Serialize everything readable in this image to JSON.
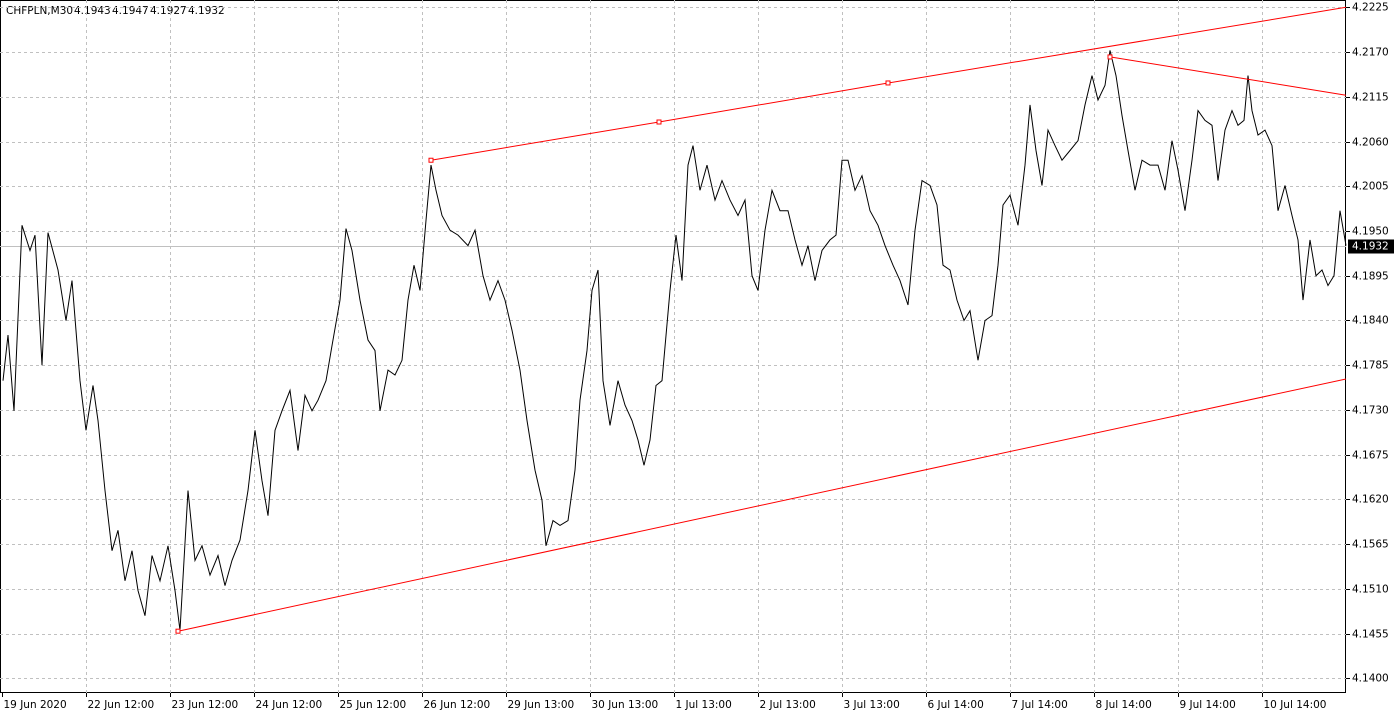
{
  "chart_data": {
    "type": "line",
    "title": "CHFPLN,M30",
    "ohlc": [
      4.1943,
      4.1947,
      4.1927,
      4.1932
    ],
    "last_price": 4.1932,
    "grid": true,
    "xlim": [
      0,
      1346
    ],
    "ylim": [
      4.1382,
      4.2234
    ],
    "xticks": [
      {
        "value": 2,
        "label": "19 Jun 2020"
      },
      {
        "value": 86,
        "label": "22 Jun 12:00"
      },
      {
        "value": 170,
        "label": "23 Jun 12:00"
      },
      {
        "value": 254,
        "label": "24 Jun 12:00"
      },
      {
        "value": 338,
        "label": "25 Jun 12:00"
      },
      {
        "value": 422,
        "label": "26 Jun 12:00"
      },
      {
        "value": 506,
        "label": "29 Jun 13:00"
      },
      {
        "value": 590,
        "label": "30 Jun 13:00"
      },
      {
        "value": 674,
        "label": "1 Jul 13:00"
      },
      {
        "value": 758,
        "label": "2 Jul 13:00"
      },
      {
        "value": 842,
        "label": "3 Jul 13:00"
      },
      {
        "value": 926,
        "label": "6 Jul 14:00"
      },
      {
        "value": 1010,
        "label": "7 Jul 14:00"
      },
      {
        "value": 1094,
        "label": "8 Jul 14:00"
      },
      {
        "value": 1178,
        "label": "9 Jul 14:00"
      },
      {
        "value": 1262,
        "label": "10 Jul 14:00"
      }
    ],
    "yticks": [
      {
        "value": 4.14,
        "label": "4.1400"
      },
      {
        "value": 4.1455,
        "label": "4.1455"
      },
      {
        "value": 4.151,
        "label": "4.1510"
      },
      {
        "value": 4.1565,
        "label": "4.1565"
      },
      {
        "value": 4.162,
        "label": "4.1620"
      },
      {
        "value": 4.1675,
        "label": "4.1675"
      },
      {
        "value": 4.173,
        "label": "4.1730"
      },
      {
        "value": 4.1785,
        "label": "4.1785"
      },
      {
        "value": 4.184,
        "label": "4.1840"
      },
      {
        "value": 4.1895,
        "label": "4.1895"
      },
      {
        "value": 4.195,
        "label": "4.1950"
      },
      {
        "value": 4.2005,
        "label": "4.2005"
      },
      {
        "value": 4.206,
        "label": "4.2060"
      },
      {
        "value": 4.2115,
        "label": "4.2115"
      },
      {
        "value": 4.217,
        "label": "4.2170"
      },
      {
        "value": 4.2225,
        "label": "4.2225"
      }
    ],
    "x": [
      3,
      8,
      14,
      22,
      30,
      35,
      42,
      48,
      58,
      66,
      72,
      80,
      86,
      93,
      98,
      105,
      112,
      118,
      125,
      132,
      138,
      145,
      152,
      160,
      168,
      175,
      180,
      188,
      195,
      202,
      210,
      218,
      225,
      232,
      240,
      248,
      255,
      262,
      268,
      275,
      282,
      290,
      298,
      305,
      312,
      318,
      326,
      332,
      340,
      346,
      352,
      360,
      368,
      375,
      380,
      388,
      395,
      402,
      408,
      414,
      420,
      426,
      431,
      436,
      442,
      450,
      458,
      468,
      475,
      483,
      490,
      498,
      505,
      512,
      520,
      527,
      535,
      542,
      546,
      553,
      560,
      568,
      575,
      580,
      587,
      592,
      598,
      603,
      610,
      618,
      625,
      632,
      638,
      644,
      650,
      656,
      662,
      670,
      676,
      682,
      688,
      693,
      700,
      707,
      715,
      722,
      730,
      738,
      745,
      752,
      758,
      765,
      772,
      780,
      788,
      795,
      802,
      808,
      815,
      822,
      830,
      836,
      842,
      848,
      855,
      862,
      870,
      878,
      885,
      893,
      900,
      908,
      915,
      922,
      930,
      937,
      943,
      950,
      957,
      964,
      970,
      978,
      985,
      992,
      998,
      1003,
      1010,
      1018,
      1025,
      1030,
      1036,
      1042,
      1048,
      1055,
      1062,
      1070,
      1078,
      1085,
      1092,
      1098,
      1105,
      1110,
      1116,
      1122,
      1128,
      1135,
      1142,
      1150,
      1158,
      1165,
      1172,
      1178,
      1185,
      1192,
      1198,
      1205,
      1212,
      1218,
      1225,
      1232,
      1238,
      1244,
      1248,
      1252,
      1258,
      1265,
      1272,
      1278,
      1285,
      1292,
      1298,
      1303,
      1310,
      1316,
      1322,
      1328,
      1334,
      1340,
      1346
    ],
    "series": [
      {
        "name": "CHFPLN",
        "color": "#000000",
        "values": [
          4.1766,
          4.1822,
          4.1729,
          4.1957,
          4.1926,
          4.1945,
          4.1785,
          4.1948,
          4.1902,
          4.184,
          4.1889,
          4.1766,
          4.1705,
          4.176,
          4.1717,
          4.1631,
          4.1557,
          4.1582,
          4.152,
          4.1557,
          4.1508,
          4.1477,
          4.1551,
          4.152,
          4.1563,
          4.1508,
          4.1459,
          4.1631,
          4.1545,
          4.1563,
          4.1527,
          4.1551,
          4.1514,
          4.1545,
          4.157,
          4.1631,
          4.1705,
          4.1643,
          4.16,
          4.1705,
          4.1729,
          4.1754,
          4.168,
          4.1748,
          4.1729,
          4.1742,
          4.1766,
          4.1809,
          4.1865,
          4.1953,
          4.1926,
          4.1865,
          4.1816,
          4.1803,
          4.1729,
          4.1779,
          4.1773,
          4.1791,
          4.1865,
          4.1908,
          4.1877,
          4.1963,
          4.2031,
          4.2,
          4.1969,
          4.1951,
          4.1945,
          4.1932,
          4.1951,
          4.1895,
          4.1865,
          4.1889,
          4.1865,
          4.1828,
          4.1779,
          4.1717,
          4.1656,
          4.1619,
          4.1563,
          4.1594,
          4.1588,
          4.1594,
          4.1656,
          4.1742,
          4.1803,
          4.1877,
          4.1902,
          4.1766,
          4.1711,
          4.1766,
          4.1736,
          4.1717,
          4.1693,
          4.1662,
          4.1693,
          4.176,
          4.1766,
          4.1877,
          4.1945,
          4.1889,
          4.2031,
          4.2055,
          4.2,
          4.2031,
          4.1988,
          4.2012,
          4.1988,
          4.1969,
          4.1988,
          4.1895,
          4.1877,
          4.1951,
          4.2,
          4.1975,
          4.1975,
          4.1939,
          4.1908,
          4.1932,
          4.1889,
          4.1926,
          4.1939,
          4.1945,
          4.2037,
          4.2037,
          4.2,
          4.2018,
          4.1975,
          4.1957,
          4.1932,
          4.1908,
          4.1889,
          4.1859,
          4.1951,
          4.2012,
          4.2006,
          4.1982,
          4.1908,
          4.1902,
          4.1865,
          4.184,
          4.1852,
          4.1791,
          4.184,
          4.1846,
          4.1908,
          4.1982,
          4.1994,
          4.1957,
          4.2031,
          4.2105,
          4.2049,
          4.2006,
          4.2074,
          4.2055,
          4.2037,
          4.2049,
          4.2061,
          4.2105,
          4.2141,
          4.2111,
          4.2129,
          4.2172,
          4.2141,
          4.2092,
          4.2049,
          4.2,
          4.2037,
          4.2031,
          4.2031,
          4.2,
          4.2061,
          4.2025,
          4.1975,
          4.2037,
          4.2098,
          4.2086,
          4.208,
          4.2012,
          4.2074,
          4.2098,
          4.208,
          4.2086,
          4.2141,
          4.2098,
          4.2068,
          4.2074,
          4.2055,
          4.1975,
          4.2006,
          4.1969,
          4.1939,
          4.1865,
          4.1939,
          4.1895,
          4.1902,
          4.1883,
          4.1895,
          4.1975,
          4.1932
        ]
      }
    ],
    "trendlines": [
      {
        "color": "#ff0000",
        "x": [
          431,
          659,
          888,
          1346
        ],
        "y": [
          4.2037,
          4.2084,
          4.2132,
          4.2225
        ]
      },
      {
        "color": "#ff0000",
        "x": [
          178,
          1346
        ],
        "y": [
          4.1458,
          4.1768
        ]
      },
      {
        "color": "#ff0000",
        "x": [
          1110,
          1346
        ],
        "y": [
          4.2164,
          4.2117
        ]
      }
    ]
  }
}
